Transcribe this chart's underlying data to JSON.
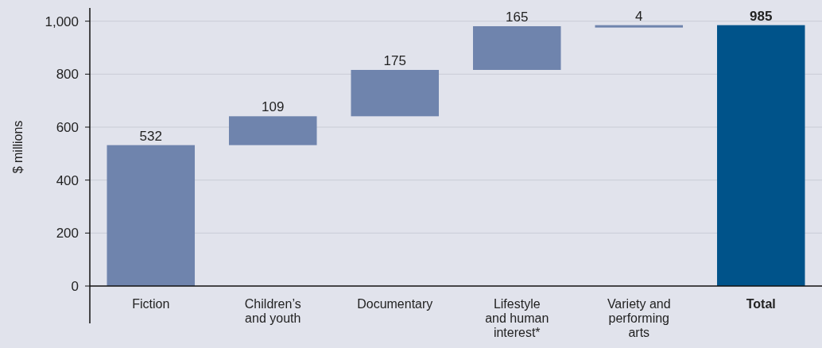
{
  "chart_data": {
    "type": "bar",
    "ylabel": "$ millions",
    "categories": [
      "Fiction",
      "Children’s and youth",
      "Documentary",
      "Lifestyle and human interest*",
      "Variety and performing arts",
      "Total"
    ],
    "values": [
      532,
      109,
      175,
      165,
      4,
      985
    ],
    "base": [
      0,
      532,
      641,
      816,
      981,
      0
    ],
    "colors": [
      "#6f84ad",
      "#6f84ad",
      "#6f84ad",
      "#6f84ad",
      "#6f84ad",
      "#00538a"
    ],
    "ylim": [
      0,
      1050
    ],
    "yticks": [
      0,
      200,
      400,
      600,
      800,
      {
        "value": 1000,
        "label": "1,000"
      }
    ],
    "grid": "y",
    "data_labels": true
  }
}
